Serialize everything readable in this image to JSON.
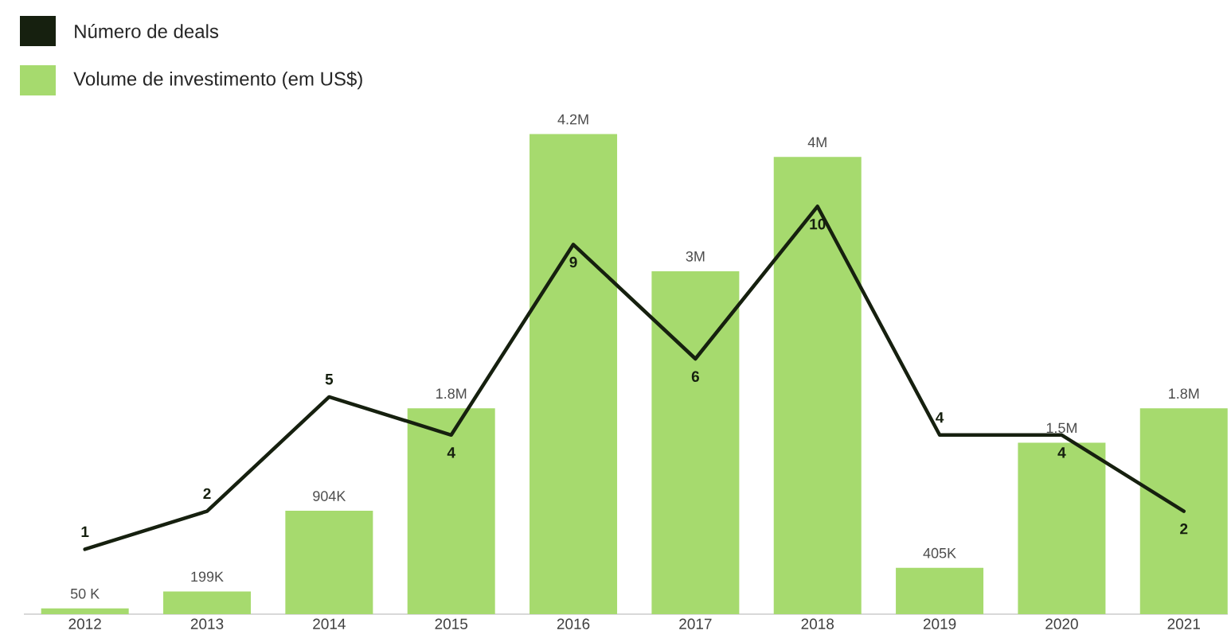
{
  "chart_data": {
    "type": "bar",
    "categories": [
      "2012",
      "2013",
      "2014",
      "2015",
      "2016",
      "2017",
      "2018",
      "2019",
      "2020",
      "2021"
    ],
    "series": [
      {
        "name": "Número de deals",
        "type": "line",
        "axis": "y2",
        "color": "#16200f",
        "data_labels": true,
        "values": [
          1,
          2,
          5,
          4,
          9,
          6,
          10,
          4,
          4,
          2
        ]
      },
      {
        "name": "Volume de investimento (em  US$)",
        "color": "#a6da6e",
        "values": [
          50000,
          199000,
          904000,
          1800000,
          4200000,
          3000000,
          4000000,
          405000,
          1500000,
          1800000
        ],
        "value_labels": [
          "50 K",
          "199K",
          "904K",
          "1.8M",
          "4.2M",
          "3M",
          "4M",
          "405K",
          "1.5M",
          "1.8M"
        ]
      }
    ],
    "legend": "top left",
    "marker": "none",
    "line_style": "solid"
  }
}
